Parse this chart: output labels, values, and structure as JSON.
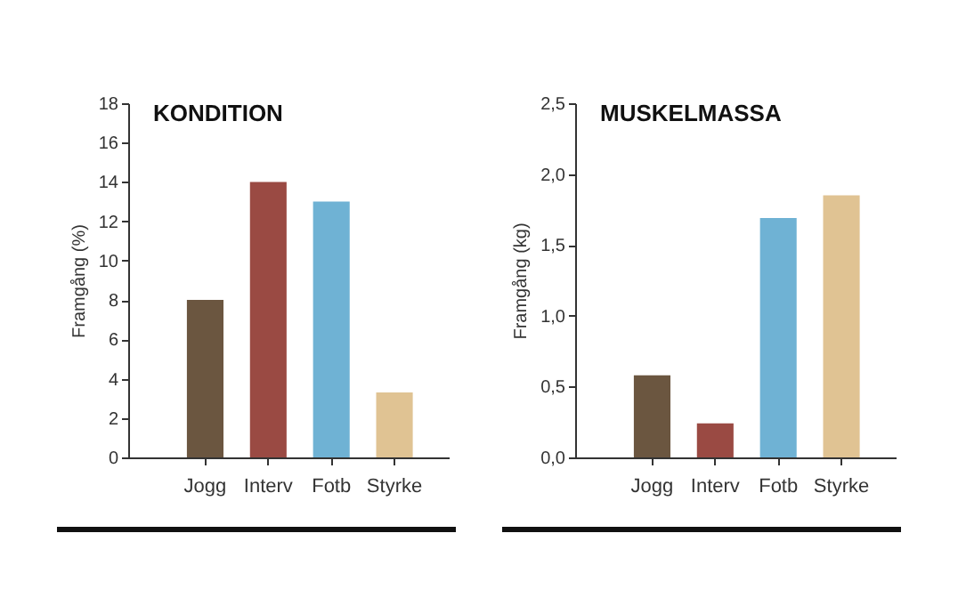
{
  "chart_data": [
    {
      "type": "bar",
      "title": "KONDITION",
      "ylabel": "Framgång (%)",
      "categories": [
        "Jogg",
        "Interv",
        "Fotb",
        "Styrke"
      ],
      "values": [
        8,
        14,
        13,
        3.3
      ],
      "colors": [
        "#6b5640",
        "#9a4a43",
        "#6fb2d4",
        "#e0c393"
      ],
      "ylim": [
        0,
        18
      ],
      "yticks": [
        0,
        2,
        4,
        6,
        8,
        10,
        12,
        14,
        16,
        18
      ]
    },
    {
      "type": "bar",
      "title": "MUSKELMASSA",
      "ylabel": "Framgång (kg)",
      "categories": [
        "Jogg",
        "Interv",
        "Fotb",
        "Styrke"
      ],
      "values": [
        0.58,
        0.24,
        1.69,
        1.85
      ],
      "colors": [
        "#6b5640",
        "#9a4a43",
        "#6fb2d4",
        "#e0c393"
      ],
      "ylim": [
        0,
        2.5
      ],
      "yticks": [
        {
          "value": 0,
          "label": "0,0"
        },
        {
          "value": 0.5,
          "label": "0,5"
        },
        {
          "value": 1,
          "label": "1,0"
        },
        {
          "value": 1.5,
          "label": "1,5"
        },
        {
          "value": 2,
          "label": "2,0"
        },
        {
          "value": 2.5,
          "label": "2,5"
        }
      ]
    }
  ]
}
